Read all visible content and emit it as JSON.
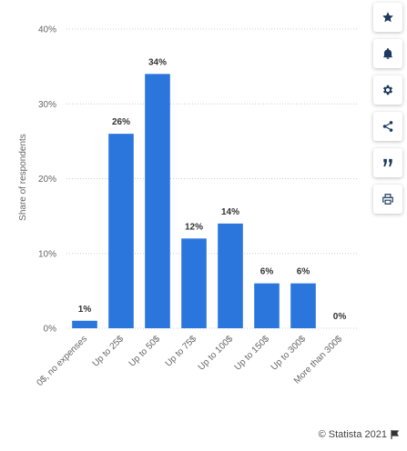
{
  "chart_data": {
    "type": "bar",
    "categories": [
      "0$, no expenses",
      "Up to 25$",
      "Up to 50$",
      "Up to 75$",
      "Up to 100$",
      "Up to 150$",
      "Up to 300$",
      "More than 300$"
    ],
    "values": [
      1,
      26,
      34,
      12,
      14,
      6,
      6,
      0
    ],
    "value_labels": [
      "1%",
      "26%",
      "34%",
      "12%",
      "14%",
      "6%",
      "6%",
      "0%"
    ],
    "ylabel": "Share of respondents",
    "ylim": [
      0,
      40
    ],
    "yticks": [
      0,
      10,
      20,
      30,
      40
    ],
    "ytick_labels": [
      "0%",
      "10%",
      "20%",
      "30%",
      "40%"
    ],
    "grid": true,
    "bar_color": "#2a76dd"
  },
  "toolbar": {
    "buttons": [
      {
        "name": "favorite-button",
        "icon": "star-icon"
      },
      {
        "name": "notification-button",
        "icon": "bell-icon"
      },
      {
        "name": "settings-button",
        "icon": "gear-icon"
      },
      {
        "name": "share-button",
        "icon": "share-icon"
      },
      {
        "name": "cite-button",
        "icon": "quote-icon"
      },
      {
        "name": "print-button",
        "icon": "print-icon"
      }
    ],
    "icon_color": "#1c3a5e"
  },
  "footer": {
    "copyright": "© Statista 2021",
    "flag_icon": "flag-icon"
  }
}
